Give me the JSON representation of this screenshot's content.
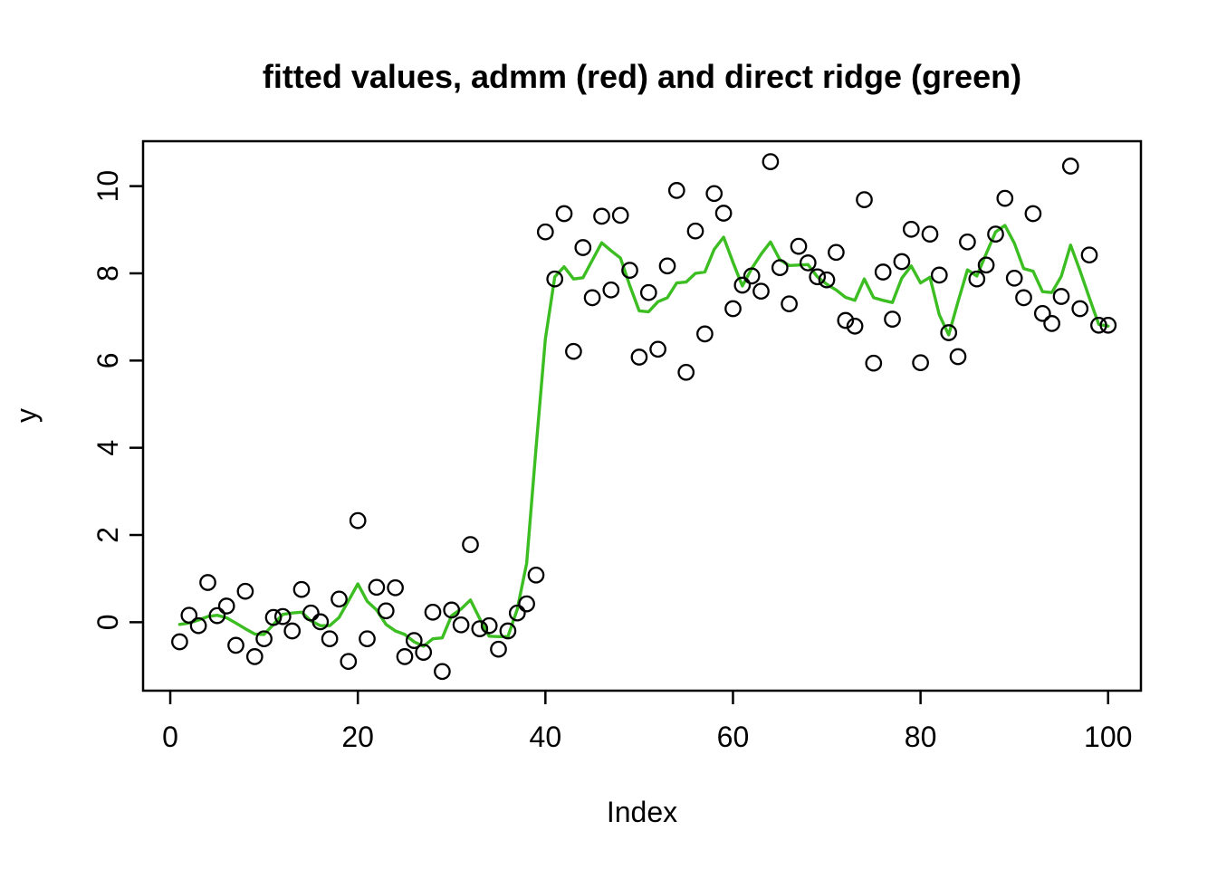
{
  "chart_data": {
    "type": "scatter",
    "title": "fitted values, admm (red) and direct ridge (green)",
    "xlabel": "Index",
    "ylabel": "y",
    "x_ticks": [
      0,
      20,
      40,
      60,
      80,
      100
    ],
    "y_ticks": [
      0,
      2,
      4,
      6,
      8,
      10
    ],
    "xlim": [
      -2.9,
      103.5
    ],
    "ylim": [
      -1.57,
      11.03
    ],
    "grid": false,
    "legend": "none (colors named in title)",
    "colors": {
      "points": "#000000",
      "ridge_line": "#3cbe23",
      "axis": "#000000"
    },
    "x": [
      1,
      2,
      3,
      4,
      5,
      6,
      7,
      8,
      9,
      10,
      11,
      12,
      13,
      14,
      15,
      16,
      17,
      18,
      19,
      20,
      21,
      22,
      23,
      24,
      25,
      26,
      27,
      28,
      29,
      30,
      31,
      32,
      33,
      34,
      35,
      36,
      37,
      38,
      39,
      40,
      41,
      42,
      43,
      44,
      45,
      46,
      47,
      48,
      49,
      50,
      51,
      52,
      53,
      54,
      55,
      56,
      57,
      58,
      59,
      60,
      61,
      62,
      63,
      64,
      65,
      66,
      67,
      68,
      69,
      70,
      71,
      72,
      73,
      74,
      75,
      76,
      77,
      78,
      79,
      80,
      81,
      82,
      83,
      84,
      85,
      86,
      87,
      88,
      89,
      90,
      91,
      92,
      93,
      94,
      95,
      96,
      97,
      98,
      99,
      100
    ],
    "series": [
      {
        "name": "y observations",
        "style": "open-circle-scatter",
        "color": "#000000",
        "values": [
          -0.45,
          0.16,
          -0.08,
          0.91,
          0.15,
          0.37,
          -0.53,
          0.71,
          -0.79,
          -0.38,
          0.11,
          0.13,
          -0.2,
          0.75,
          0.21,
          0.01,
          -0.38,
          0.53,
          -0.9,
          2.33,
          -0.38,
          0.8,
          0.26,
          0.79,
          -0.79,
          -0.42,
          -0.69,
          0.23,
          -1.13,
          0.28,
          -0.06,
          1.78,
          -0.15,
          -0.08,
          -0.62,
          -0.2,
          0.21,
          0.42,
          1.08,
          8.95,
          7.87,
          9.37,
          6.21,
          8.59,
          7.44,
          9.31,
          7.62,
          9.33,
          8.07,
          6.08,
          7.56,
          6.26,
          8.17,
          9.9,
          5.73,
          8.97,
          6.61,
          9.83,
          9.38,
          7.19,
          7.73,
          7.94,
          7.59,
          10.56,
          8.13,
          7.3,
          8.62,
          8.24,
          7.92,
          7.85,
          8.48,
          6.92,
          6.79,
          9.69,
          5.94,
          8.03,
          6.95,
          8.27,
          9.01,
          5.95,
          8.9,
          7.96,
          6.64,
          6.09,
          8.72,
          7.87,
          8.19,
          8.9,
          9.72,
          7.89,
          7.44,
          9.37,
          7.08,
          6.85,
          7.47,
          10.46,
          7.19,
          8.42,
          6.81,
          6.81
        ]
      },
      {
        "name": "direct ridge fitted line (green, coincides with admm red)",
        "style": "line",
        "color": "#3cbe23",
        "values": [
          -0.05,
          -0.02,
          0.05,
          0.13,
          0.16,
          0.1,
          -0.02,
          -0.15,
          -0.27,
          -0.28,
          -0.05,
          0.18,
          0.21,
          0.23,
          0.03,
          -0.08,
          -0.08,
          0.11,
          0.49,
          0.88,
          0.48,
          0.28,
          -0.05,
          -0.2,
          -0.28,
          -0.45,
          -0.55,
          -0.38,
          -0.36,
          0.15,
          0.3,
          0.51,
          0.08,
          -0.32,
          -0.33,
          -0.33,
          0.3,
          1.35,
          4.0,
          6.5,
          7.92,
          8.15,
          7.87,
          7.9,
          8.3,
          8.7,
          8.52,
          8.35,
          7.72,
          7.14,
          7.12,
          7.35,
          7.44,
          7.78,
          7.8,
          8.0,
          8.03,
          8.55,
          8.83,
          8.25,
          7.71,
          8.11,
          8.44,
          8.72,
          8.31,
          8.18,
          8.19,
          8.2,
          7.92,
          7.75,
          7.62,
          7.45,
          7.38,
          7.87,
          7.44,
          7.38,
          7.33,
          7.89,
          8.17,
          7.78,
          7.91,
          7.05,
          6.59,
          7.35,
          8.08,
          7.94,
          8.45,
          8.95,
          9.1,
          8.69,
          8.11,
          8.05,
          7.58,
          7.56,
          7.93,
          8.65,
          8.06,
          7.44,
          6.83,
          6.79
        ]
      }
    ]
  }
}
